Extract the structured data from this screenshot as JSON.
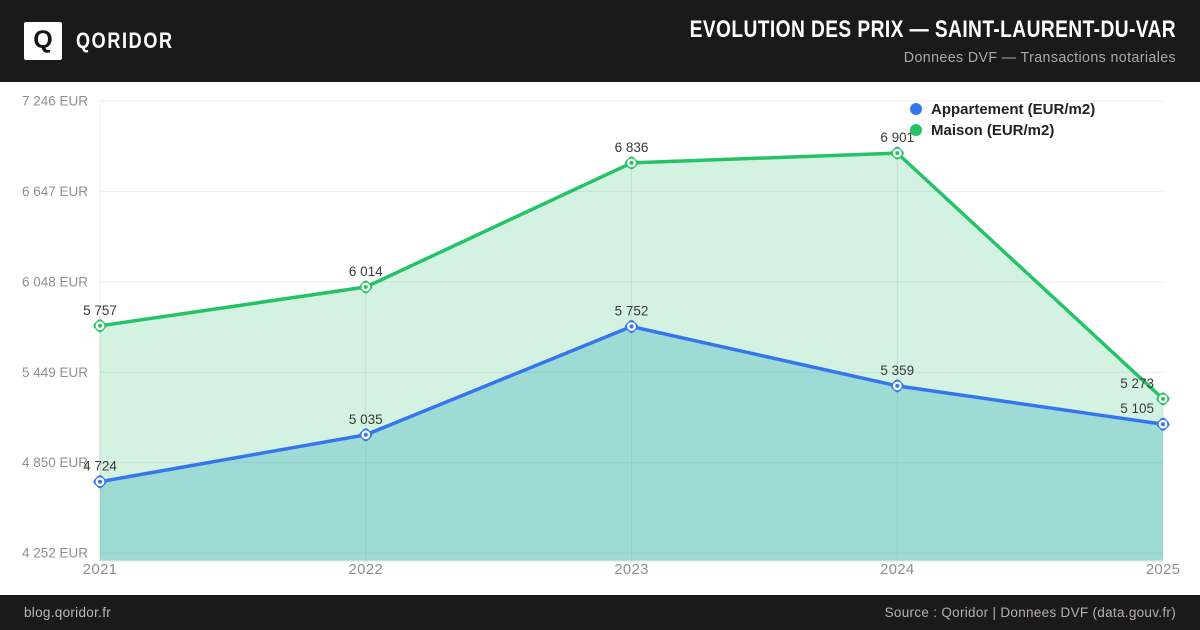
{
  "header": {
    "brand": "QORIDOR",
    "logo_letter": "Q",
    "title": "EVOLUTION DES PRIX — SAINT-LAURENT-DU-VAR",
    "subtitle": "Donnees DVF — Transactions notariales"
  },
  "footer": {
    "left": "blog.qoridor.fr",
    "right": "Source : Qoridor | Donnees DVF (data.gouv.fr)"
  },
  "colors": {
    "header_bg": "#1a1a1a",
    "appartement_line": "#3575ee",
    "maison_line": "#25c366",
    "appartement_fill": "rgba(23,162,184,0.28)",
    "maison_fill": "rgba(40,190,105,0.20)",
    "grid": "#ebebeb"
  },
  "chart_data": {
    "type": "line",
    "x": [
      "2021",
      "2022",
      "2023",
      "2024",
      "2025"
    ],
    "series": [
      {
        "name": "Appartement (EUR/m2)",
        "values": [
          4724,
          5035,
          5752,
          5359,
          5105
        ],
        "color": "#3575ee",
        "fill": "rgba(23,162,184,0.28)"
      },
      {
        "name": "Maison (EUR/m2)",
        "values": [
          5757,
          6014,
          6836,
          6901,
          5273
        ],
        "color": "#25c366",
        "fill": "rgba(40,190,105,0.20)"
      }
    ],
    "point_labels": {
      "appartement": [
        "4 724",
        "5 035",
        "5 752",
        "5 359",
        "5 105"
      ],
      "maison": [
        "5 757",
        "6 014",
        "6 836",
        "6 901",
        "5 273"
      ]
    },
    "y_ticks": [
      4252,
      4850,
      5449,
      6048,
      6647,
      7246
    ],
    "y_tick_labels": [
      "4 252 EUR",
      "4 850 EUR",
      "5 449 EUR",
      "6 048 EUR",
      "6 647 EUR",
      "7 246 EUR"
    ],
    "y_tick_suffix": " EUR",
    "ylim": [
      4252,
      7246
    ],
    "legend_position": "top-right",
    "grid": true,
    "area_fill": true
  }
}
